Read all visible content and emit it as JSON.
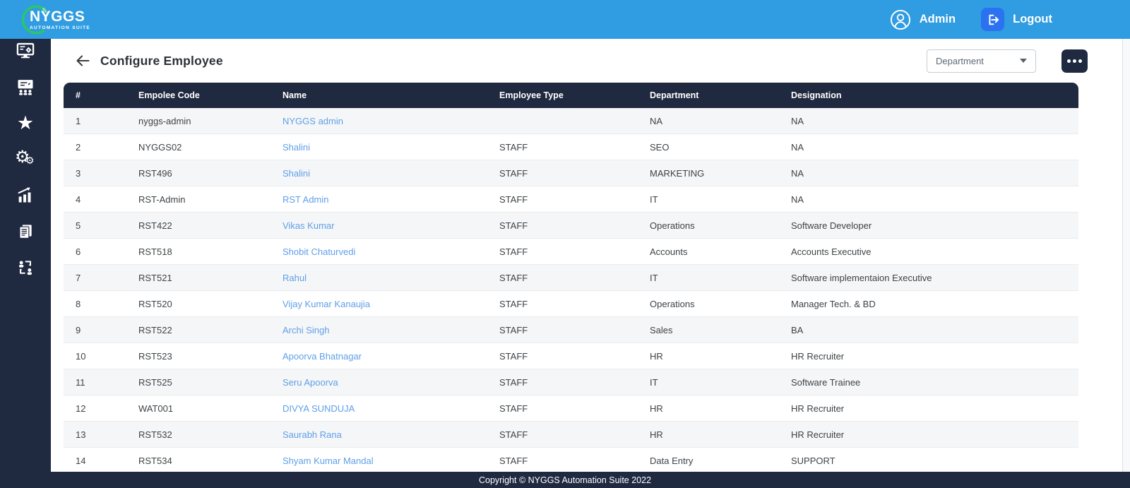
{
  "header": {
    "logo": {
      "title": "NYGGS",
      "subtitle": "AUTOMATION SUITE"
    },
    "user_label": "Admin",
    "logout_label": "Logout"
  },
  "sidebar": {
    "icons": [
      "monitor-settings-icon",
      "team-board-icon",
      "star-icon",
      "settings-gears-icon",
      "growth-chart-icon",
      "documents-icon",
      "people-sync-icon"
    ]
  },
  "toolbar": {
    "page_title": "Configure Employee",
    "department_filter_value": "Department"
  },
  "table": {
    "columns": [
      "#",
      "Empolee Code",
      "Name",
      "Employee Type",
      "Department",
      "Designation"
    ],
    "rows": [
      {
        "index": "1",
        "code": "nyggs-admin",
        "name": "NYGGS admin",
        "type": "",
        "department": "NA",
        "designation": "NA"
      },
      {
        "index": "2",
        "code": "NYGGS02",
        "name": "Shalini",
        "type": "STAFF",
        "department": "SEO",
        "designation": "NA"
      },
      {
        "index": "3",
        "code": "RST496",
        "name": "Shalini",
        "type": "STAFF",
        "department": "MARKETING",
        "designation": "NA"
      },
      {
        "index": "4",
        "code": "RST-Admin",
        "name": "RST Admin",
        "type": "STAFF",
        "department": "IT",
        "designation": "NA"
      },
      {
        "index": "5",
        "code": "RST422",
        "name": "Vikas Kumar",
        "type": "STAFF",
        "department": "Operations",
        "designation": "Software Developer"
      },
      {
        "index": "6",
        "code": "RST518",
        "name": "Shobit Chaturvedi",
        "type": "STAFF",
        "department": "Accounts",
        "designation": "Accounts Executive"
      },
      {
        "index": "7",
        "code": "RST521",
        "name": "Rahul",
        "type": "STAFF",
        "department": "IT",
        "designation": "Software implementaion Executive"
      },
      {
        "index": "8",
        "code": "RST520",
        "name": "Vijay Kumar Kanaujia",
        "type": "STAFF",
        "department": "Operations",
        "designation": "Manager Tech. & BD"
      },
      {
        "index": "9",
        "code": "RST522",
        "name": "Archi Singh",
        "type": "STAFF",
        "department": "Sales",
        "designation": "BA"
      },
      {
        "index": "10",
        "code": "RST523",
        "name": "Apoorva Bhatnagar",
        "type": "STAFF",
        "department": "HR",
        "designation": "HR Recruiter"
      },
      {
        "index": "11",
        "code": "RST525",
        "name": "Seru Apoorva",
        "type": "STAFF",
        "department": "IT",
        "designation": "Software Trainee"
      },
      {
        "index": "12",
        "code": "WAT001",
        "name": "DIVYA SUNDUJA",
        "type": "STAFF",
        "department": "HR",
        "designation": "HR Recruiter"
      },
      {
        "index": "13",
        "code": "RST532",
        "name": "Saurabh Rana",
        "type": "STAFF",
        "department": "HR",
        "designation": "HR Recruiter"
      },
      {
        "index": "14",
        "code": "RST534",
        "name": "Shyam Kumar Mandal",
        "type": "STAFF",
        "department": "Data Entry",
        "designation": "SUPPORT"
      }
    ]
  },
  "footer": {
    "copyright": "Copyright © NYGGS Automation Suite 2022"
  },
  "colors": {
    "header_blue": "#309CE1",
    "navy": "#1F2940",
    "logout_blue": "#2B72F0",
    "link_blue": "#5F9FE8",
    "logo_green": "#2BC46F",
    "row_stripe": "#F5F6F7"
  }
}
